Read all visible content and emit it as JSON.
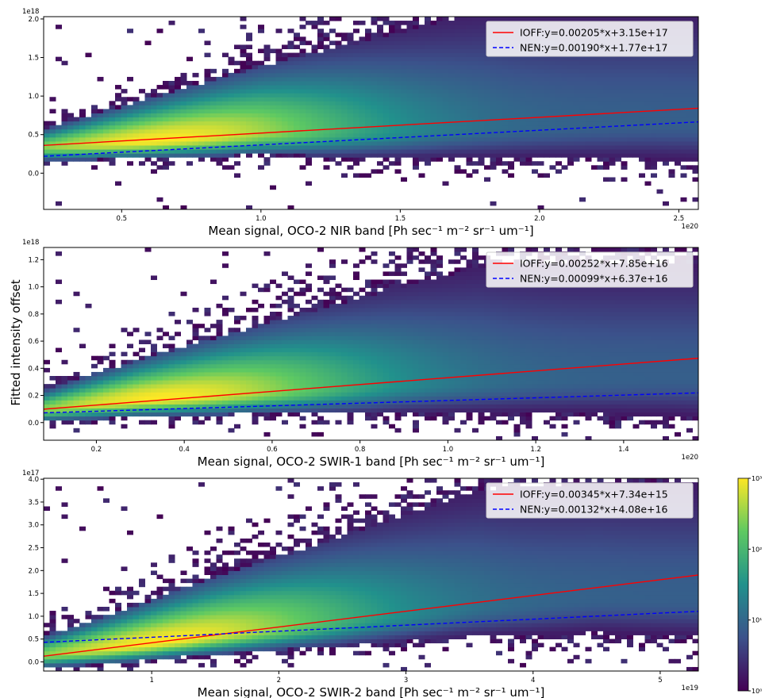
{
  "figure": {
    "ylabel": "Fitted intensity offset",
    "colorbar": {
      "scale": "log",
      "colormap": "viridis",
      "ticks": [
        {
          "value": 1,
          "label": "10⁰"
        },
        {
          "value": 10,
          "label": "10¹"
        },
        {
          "value": 100,
          "label": "10²"
        },
        {
          "value": 1000,
          "label": "10³"
        }
      ]
    }
  },
  "chart_data": [
    {
      "type": "heatmap",
      "panel": "nir",
      "xlabel": "Mean signal, OCO-2 NIR band [Ph sec⁻¹ m⁻² sr⁻¹ um⁻¹]",
      "xlim": [
        2.2e+19,
        2.57e+20
      ],
      "ylim": [
        -4.7e+17,
        2.03e+18
      ],
      "x_offset_label": "1e20",
      "y_offset_label": "1e18",
      "x_ticks": [
        {
          "value": 5e+19,
          "label": "0.5"
        },
        {
          "value": 1e+20,
          "label": "1.0"
        },
        {
          "value": 1.5e+20,
          "label": "1.5"
        },
        {
          "value": 2e+20,
          "label": "2.0"
        },
        {
          "value": 2.5e+20,
          "label": "2.5"
        }
      ],
      "y_ticks": [
        {
          "value": 0,
          "label": "0.0"
        },
        {
          "value": 5e+17,
          "label": "0.5"
        },
        {
          "value": 1e+18,
          "label": "1.0"
        },
        {
          "value": 1.5e+18,
          "label": "1.5"
        },
        {
          "value": 2e+18,
          "label": "2.0"
        }
      ],
      "lines": [
        {
          "name": "IOFF",
          "label": "IOFF:y=0.00205*x+3.15e+17",
          "slope": 0.00205,
          "intercept": 3.15e+17,
          "color": "#ff0000",
          "style": "solid"
        },
        {
          "name": "NEN",
          "label": "NEN:y=0.00190*x+1.77e+17",
          "slope": 0.0019,
          "intercept": 1.77e+17,
          "color": "#0000ff",
          "style": "dashed"
        }
      ],
      "density_ridge": {
        "x": [
          2.2e+19,
          6e+19,
          1e+20,
          1.5e+20,
          2e+20,
          2.4e+20
        ],
        "y": [
          3.3e+17,
          4.2e+17,
          5.2e+17,
          5.6e+17,
          6.2e+17,
          6.6e+17
        ]
      },
      "legend_loc": "upper right",
      "grid": false
    },
    {
      "type": "heatmap",
      "panel": "swir1",
      "xlabel": "Mean signal, OCO-2 SWIR-1 band [Ph sec⁻¹ m⁻² sr⁻¹ um⁻¹]",
      "xlim": [
        8e+18,
        1.57e+20
      ],
      "ylim": [
        -1.3e+17,
        1.29e+18
      ],
      "x_offset_label": "1e20",
      "y_offset_label": "1e18",
      "x_ticks": [
        {
          "value": 2e+19,
          "label": "0.2"
        },
        {
          "value": 4e+19,
          "label": "0.4"
        },
        {
          "value": 6e+19,
          "label": "0.6"
        },
        {
          "value": 8e+19,
          "label": "0.8"
        },
        {
          "value": 1e+20,
          "label": "1.0"
        },
        {
          "value": 1.2e+20,
          "label": "1.2"
        },
        {
          "value": 1.4e+20,
          "label": "1.4"
        }
      ],
      "y_ticks": [
        {
          "value": 0,
          "label": "0.0"
        },
        {
          "value": 2e+17,
          "label": "0.2"
        },
        {
          "value": 4e+17,
          "label": "0.4"
        },
        {
          "value": 6e+17,
          "label": "0.6"
        },
        {
          "value": 8e+17,
          "label": "0.8"
        },
        {
          "value": 1e+18,
          "label": "1.0"
        },
        {
          "value": 1.2e+18,
          "label": "1.2"
        }
      ],
      "lines": [
        {
          "name": "IOFF",
          "label": "IOFF:y=0.00252*x+7.85e+16",
          "slope": 0.00252,
          "intercept": 7.85e+16,
          "color": "#ff0000",
          "style": "solid"
        },
        {
          "name": "NEN",
          "label": "NEN:y=0.00099*x+6.37e+16",
          "slope": 0.00099,
          "intercept": 6.37e+16,
          "color": "#0000ff",
          "style": "dashed"
        }
      ],
      "density_ridge": {
        "x": [
          8e+18,
          3e+19,
          6e+19,
          9e+19,
          1.2e+20,
          1.5e+20
        ],
        "y": [
          1e+17,
          1.7e+17,
          2.3e+17,
          2.8e+17,
          3.1e+17,
          3.3e+17
        ]
      },
      "legend_loc": "upper right",
      "grid": false
    },
    {
      "type": "heatmap",
      "panel": "swir2",
      "xlabel": "Mean signal, OCO-2 SWIR-2 band [Ph sec⁻¹ m⁻² sr⁻¹ um⁻¹]",
      "xlim": [
        1.5e+18,
        5.3e+19
      ],
      "ylim": [
        -2e+16,
        4.02e+17
      ],
      "x_offset_label": "1e19",
      "y_offset_label": "1e17",
      "x_ticks": [
        {
          "value": 1e+19,
          "label": "1"
        },
        {
          "value": 2e+19,
          "label": "2"
        },
        {
          "value": 3e+19,
          "label": "3"
        },
        {
          "value": 4e+19,
          "label": "4"
        },
        {
          "value": 5e+19,
          "label": "5"
        }
      ],
      "y_ticks": [
        {
          "value": 0,
          "label": "0.0"
        },
        {
          "value": 5e+16,
          "label": "0.5"
        },
        {
          "value": 1e+17,
          "label": "1.0"
        },
        {
          "value": 1.5e+17,
          "label": "1.5"
        },
        {
          "value": 2e+17,
          "label": "2.0"
        },
        {
          "value": 2.5e+17,
          "label": "2.5"
        },
        {
          "value": 3e+17,
          "label": "3.0"
        },
        {
          "value": 3.5e+17,
          "label": "3.5"
        },
        {
          "value": 4e+17,
          "label": "4.0"
        }
      ],
      "lines": [
        {
          "name": "IOFF",
          "label": "IOFF:y=0.00345*x+7.34e+15",
          "slope": 0.00345,
          "intercept": 7340000000000000.0,
          "color": "#ff0000",
          "style": "solid"
        },
        {
          "name": "NEN",
          "label": "NEN:y=0.00132*x+4.08e+16",
          "slope": 0.00132,
          "intercept": 4.08e+16,
          "color": "#0000ff",
          "style": "dashed"
        }
      ],
      "density_ridge": {
        "x": [
          1.5e+18,
          8e+18,
          1.5e+19,
          2.5e+19,
          3.5e+19,
          4.5e+19
        ],
        "y": [
          1.5e+16,
          3.5e+16,
          6e+16,
          9e+16,
          1.2e+17,
          1.4e+17
        ]
      },
      "legend_loc": "upper right",
      "grid": false
    }
  ]
}
